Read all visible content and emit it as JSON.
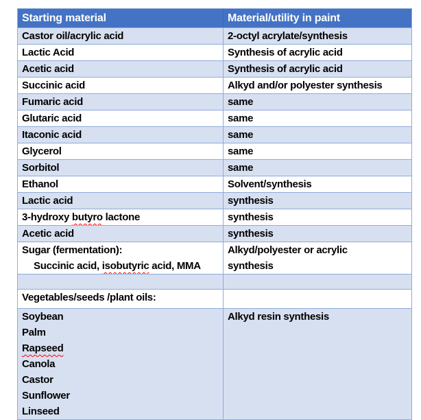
{
  "colors": {
    "header_bg": "#4472C4",
    "header_text": "#FFFFFF",
    "band_row_bg": "#D7E0F1",
    "plain_row_bg": "#FFFFFF",
    "border": "#8EAADB",
    "body_text": "#000000",
    "spellcheck_squiggle": "#FF0000"
  },
  "table": {
    "columns": [
      {
        "label": "Starting material"
      },
      {
        "label": "Material/utility in paint"
      }
    ],
    "rows": [
      {
        "shade": "band",
        "c1": [
          {
            "segs": [
              {
                "t": "Castor oil/acrylic acid"
              }
            ]
          }
        ],
        "c2": [
          {
            "segs": [
              {
                "t": "2-octyl acrylate/synthesis"
              }
            ]
          }
        ]
      },
      {
        "shade": "plain",
        "c1": [
          {
            "segs": [
              {
                "t": "Lactic Acid"
              }
            ]
          }
        ],
        "c2": [
          {
            "segs": [
              {
                "t": "Synthesis of acrylic acid"
              }
            ]
          }
        ]
      },
      {
        "shade": "band",
        "c1": [
          {
            "segs": [
              {
                "t": "Acetic acid"
              }
            ]
          }
        ],
        "c2": [
          {
            "segs": [
              {
                "t": "Synthesis of acrylic acid"
              }
            ]
          }
        ]
      },
      {
        "shade": "plain",
        "c1": [
          {
            "segs": [
              {
                "t": "Succinic acid"
              }
            ]
          }
        ],
        "c2": [
          {
            "segs": [
              {
                "t": "Alkyd and/or polyester synthesis"
              }
            ]
          }
        ]
      },
      {
        "shade": "band",
        "c1": [
          {
            "segs": [
              {
                "t": "Fumaric acid"
              }
            ]
          }
        ],
        "c2": [
          {
            "segs": [
              {
                "t": "same"
              }
            ]
          }
        ]
      },
      {
        "shade": "plain",
        "c1": [
          {
            "segs": [
              {
                "t": "Glutaric acid"
              }
            ]
          }
        ],
        "c2": [
          {
            "segs": [
              {
                "t": "same"
              }
            ]
          }
        ]
      },
      {
        "shade": "band",
        "c1": [
          {
            "segs": [
              {
                "t": "Itaconic acid"
              }
            ]
          }
        ],
        "c2": [
          {
            "segs": [
              {
                "t": "same"
              }
            ]
          }
        ]
      },
      {
        "shade": "plain",
        "c1": [
          {
            "segs": [
              {
                "t": "Glycerol"
              }
            ]
          }
        ],
        "c2": [
          {
            "segs": [
              {
                "t": "same"
              }
            ]
          }
        ]
      },
      {
        "shade": "band",
        "c1": [
          {
            "segs": [
              {
                "t": "Sorbitol"
              }
            ]
          }
        ],
        "c2": [
          {
            "segs": [
              {
                "t": "same"
              }
            ]
          }
        ]
      },
      {
        "shade": "plain",
        "c1": [
          {
            "segs": [
              {
                "t": "Ethanol"
              }
            ]
          }
        ],
        "c2": [
          {
            "segs": [
              {
                "t": "Solvent/synthesis"
              }
            ]
          }
        ]
      },
      {
        "shade": "band",
        "c1": [
          {
            "segs": [
              {
                "t": "Lactic acid"
              }
            ]
          }
        ],
        "c2": [
          {
            "segs": [
              {
                "t": "synthesis"
              }
            ]
          }
        ]
      },
      {
        "shade": "plain",
        "c1": [
          {
            "segs": [
              {
                "t": "3-hydroxy "
              },
              {
                "t": "butyro",
                "sq": true
              },
              {
                "t": " lactone"
              }
            ]
          }
        ],
        "c2": [
          {
            "segs": [
              {
                "t": "synthesis"
              }
            ]
          }
        ]
      },
      {
        "shade": "band",
        "c1": [
          {
            "segs": [
              {
                "t": "Acetic acid"
              }
            ]
          }
        ],
        "c2": [
          {
            "segs": [
              {
                "t": "synthesis"
              }
            ]
          }
        ]
      },
      {
        "shade": "plain",
        "c1": [
          {
            "segs": [
              {
                "t": "Sugar (fermentation):"
              }
            ]
          },
          {
            "ind": true,
            "segs": [
              {
                "t": "Succinic acid, "
              },
              {
                "t": "isobutyric",
                "sq": true
              },
              {
                "t": " acid, MMA"
              }
            ]
          }
        ],
        "c2": [
          {
            "segs": [
              {
                "t": "Alkyd/polyester or acrylic"
              }
            ]
          },
          {
            "segs": [
              {
                "t": "synthesis"
              }
            ]
          }
        ]
      },
      {
        "shade": "band",
        "h": 22,
        "c1": [],
        "c2": []
      },
      {
        "shade": "plain",
        "h": 28,
        "c1": [
          {
            "segs": [
              {
                "t": "Vegetables/seeds /plant oils:"
              }
            ]
          }
        ],
        "c2": []
      },
      {
        "shade": "band",
        "c1": [
          {
            "segs": [
              {
                "t": "Soybean"
              }
            ]
          },
          {
            "segs": [
              {
                "t": "Palm"
              }
            ]
          },
          {
            "segs": [
              {
                "t": "Rapseed",
                "sq": true
              }
            ]
          },
          {
            "segs": [
              {
                "t": "Canola"
              }
            ]
          },
          {
            "segs": [
              {
                "t": "Castor"
              }
            ]
          },
          {
            "segs": [
              {
                "t": "Sunflower"
              }
            ]
          },
          {
            "segs": [
              {
                "t": "Linseed"
              }
            ]
          }
        ],
        "c2": [
          {
            "segs": [
              {
                "t": "Alkyd resin synthesis"
              }
            ]
          }
        ]
      }
    ]
  }
}
